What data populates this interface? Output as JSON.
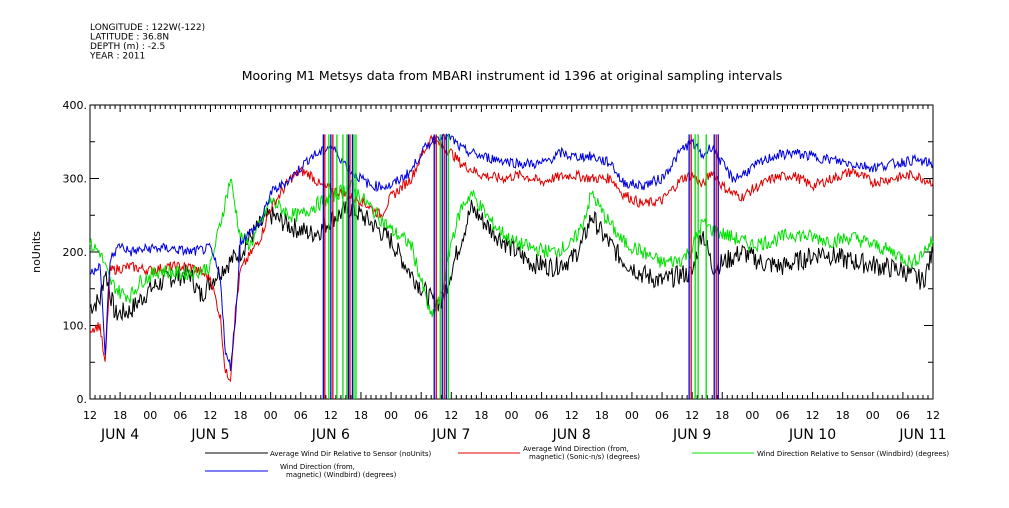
{
  "header": {
    "meta_lines": [
      "LONGITUDE : 122W(-122)",
      "LATITUDE : 36.8N",
      "DEPTH (m) : -2.5",
      "YEAR : 2011"
    ]
  },
  "chart_data": {
    "type": "line",
    "title": "Mooring M1 Metsys data from MBARI instrument id 1396 at original sampling intervals",
    "ylabel": "noUnits",
    "xlabel": "",
    "ylim": [
      0,
      400
    ],
    "y_ticks": [
      "0.",
      "100.",
      "200.",
      "300.",
      "400."
    ],
    "x_range_hours": [
      0,
      168
    ],
    "x_tick_hours": [
      0,
      6,
      12,
      18,
      24,
      30,
      36,
      42,
      48,
      54,
      60,
      66,
      72,
      78,
      84,
      90,
      96,
      102,
      108,
      114,
      120,
      126,
      132,
      138,
      144,
      150,
      156,
      162,
      168
    ],
    "x_tick_labels": [
      "12",
      "18",
      "00",
      "06",
      "12",
      "18",
      "00",
      "06",
      "12",
      "18",
      "00",
      "06",
      "12",
      "18",
      "00",
      "06",
      "12",
      "18",
      "00",
      "06",
      "12",
      "18",
      "00",
      "06",
      "12",
      "18",
      "00",
      "06",
      "12"
    ],
    "date_labels": [
      {
        "text": "JUN  4",
        "hour": 6
      },
      {
        "text": "JUN  5",
        "hour": 24
      },
      {
        "text": "JUN  6",
        "hour": 48
      },
      {
        "text": "JUN  7",
        "hour": 72
      },
      {
        "text": "JUN  8",
        "hour": 96
      },
      {
        "text": "JUN  9",
        "hour": 120
      },
      {
        "text": "JUN 10",
        "hour": 144
      },
      {
        "text": "JUN 11",
        "hour": 166
      }
    ],
    "grid": false,
    "legend_position": "bottom",
    "series": [
      {
        "name": "Average Wind Dir Relative to Sensor (noUnits)",
        "color": "#000000",
        "points": [
          [
            0,
            125
          ],
          [
            2,
            135
          ],
          [
            3,
            175
          ],
          [
            5,
            115
          ],
          [
            8,
            120
          ],
          [
            12,
            150
          ],
          [
            16,
            165
          ],
          [
            20,
            170
          ],
          [
            22,
            140
          ],
          [
            24,
            160
          ],
          [
            26,
            175
          ],
          [
            30,
            200
          ],
          [
            33,
            230
          ],
          [
            36,
            250
          ],
          [
            40,
            235
          ],
          [
            44,
            225
          ],
          [
            46,
            230
          ],
          [
            48,
            245
          ],
          [
            52,
            260
          ],
          [
            56,
            240
          ],
          [
            60,
            215
          ],
          [
            64,
            170
          ],
          [
            68,
            135
          ],
          [
            70,
            130
          ],
          [
            72,
            175
          ],
          [
            76,
            260
          ],
          [
            80,
            230
          ],
          [
            84,
            205
          ],
          [
            88,
            185
          ],
          [
            92,
            180
          ],
          [
            96,
            190
          ],
          [
            98,
            210
          ],
          [
            100,
            250
          ],
          [
            102,
            225
          ],
          [
            106,
            190
          ],
          [
            110,
            170
          ],
          [
            114,
            160
          ],
          [
            118,
            170
          ],
          [
            120,
            170
          ],
          [
            122,
            230
          ],
          [
            124,
            180
          ],
          [
            126,
            185
          ],
          [
            130,
            200
          ],
          [
            134,
            185
          ],
          [
            138,
            180
          ],
          [
            142,
            190
          ],
          [
            146,
            200
          ],
          [
            150,
            190
          ],
          [
            154,
            185
          ],
          [
            158,
            180
          ],
          [
            162,
            175
          ],
          [
            166,
            160
          ],
          [
            168,
            200
          ]
        ]
      },
      {
        "name": "Average Wind Direction (from, magnetic) (Sonic-n/s) (degrees)",
        "color": "#e00000",
        "points": [
          [
            0,
            95
          ],
          [
            2,
            100
          ],
          [
            3,
            45
          ],
          [
            4,
            175
          ],
          [
            8,
            180
          ],
          [
            12,
            175
          ],
          [
            16,
            180
          ],
          [
            20,
            180
          ],
          [
            24,
            165
          ],
          [
            26,
            110
          ],
          [
            27,
            35
          ],
          [
            28,
            30
          ],
          [
            29,
            120
          ],
          [
            30,
            175
          ],
          [
            34,
            220
          ],
          [
            36,
            260
          ],
          [
            40,
            300
          ],
          [
            42,
            310
          ],
          [
            44,
            305
          ],
          [
            46,
            290
          ],
          [
            50,
            280
          ],
          [
            54,
            270
          ],
          [
            58,
            250
          ],
          [
            60,
            275
          ],
          [
            64,
            300
          ],
          [
            66,
            330
          ],
          [
            68,
            355
          ],
          [
            70,
            345
          ],
          [
            72,
            335
          ],
          [
            74,
            320
          ],
          [
            78,
            305
          ],
          [
            82,
            300
          ],
          [
            86,
            305
          ],
          [
            90,
            295
          ],
          [
            92,
            300
          ],
          [
            96,
            305
          ],
          [
            100,
            300
          ],
          [
            104,
            300
          ],
          [
            106,
            280
          ],
          [
            110,
            265
          ],
          [
            114,
            270
          ],
          [
            116,
            285
          ],
          [
            118,
            300
          ],
          [
            120,
            305
          ],
          [
            122,
            290
          ],
          [
            124,
            310
          ],
          [
            126,
            290
          ],
          [
            128,
            280
          ],
          [
            130,
            275
          ],
          [
            132,
            285
          ],
          [
            136,
            300
          ],
          [
            140,
            305
          ],
          [
            144,
            290
          ],
          [
            148,
            300
          ],
          [
            152,
            310
          ],
          [
            156,
            295
          ],
          [
            160,
            300
          ],
          [
            164,
            305
          ],
          [
            168,
            295
          ]
        ]
      },
      {
        "name": "Wind Direction Relative to Sensor (Windbird) (degrees)",
        "color": "#00e000",
        "points": [
          [
            0,
            210
          ],
          [
            2,
            200
          ],
          [
            4,
            160
          ],
          [
            6,
            145
          ],
          [
            8,
            140
          ],
          [
            10,
            160
          ],
          [
            14,
            175
          ],
          [
            18,
            170
          ],
          [
            22,
            175
          ],
          [
            24,
            180
          ],
          [
            26,
            240
          ],
          [
            28,
            300
          ],
          [
            30,
            220
          ],
          [
            32,
            210
          ],
          [
            34,
            240
          ],
          [
            36,
            270
          ],
          [
            38,
            260
          ],
          [
            40,
            250
          ],
          [
            42,
            250
          ],
          [
            44,
            260
          ],
          [
            48,
            275
          ],
          [
            52,
            290
          ],
          [
            56,
            260
          ],
          [
            60,
            230
          ],
          [
            64,
            210
          ],
          [
            66,
            160
          ],
          [
            68,
            110
          ],
          [
            70,
            140
          ],
          [
            72,
            215
          ],
          [
            74,
            260
          ],
          [
            76,
            280
          ],
          [
            80,
            240
          ],
          [
            84,
            215
          ],
          [
            88,
            205
          ],
          [
            92,
            200
          ],
          [
            96,
            210
          ],
          [
            98,
            235
          ],
          [
            100,
            280
          ],
          [
            102,
            255
          ],
          [
            106,
            215
          ],
          [
            110,
            200
          ],
          [
            114,
            185
          ],
          [
            118,
            190
          ],
          [
            120,
            205
          ],
          [
            122,
            240
          ],
          [
            124,
            230
          ],
          [
            128,
            220
          ],
          [
            132,
            210
          ],
          [
            136,
            215
          ],
          [
            140,
            225
          ],
          [
            144,
            220
          ],
          [
            148,
            215
          ],
          [
            152,
            220
          ],
          [
            156,
            210
          ],
          [
            160,
            200
          ],
          [
            164,
            185
          ],
          [
            168,
            215
          ]
        ]
      },
      {
        "name": "Wind Direction (from, magnetic) (Windbird) (degrees)",
        "color": "#0000e0",
        "points": [
          [
            0,
            170
          ],
          [
            2,
            185
          ],
          [
            3,
            60
          ],
          [
            4,
            190
          ],
          [
            6,
            210
          ],
          [
            8,
            200
          ],
          [
            12,
            205
          ],
          [
            16,
            205
          ],
          [
            20,
            200
          ],
          [
            24,
            205
          ],
          [
            26,
            165
          ],
          [
            27,
            60
          ],
          [
            28,
            45
          ],
          [
            29,
            110
          ],
          [
            30,
            215
          ],
          [
            34,
            240
          ],
          [
            36,
            280
          ],
          [
            40,
            300
          ],
          [
            42,
            315
          ],
          [
            44,
            330
          ],
          [
            46,
            335
          ],
          [
            48,
            345
          ],
          [
            52,
            310
          ],
          [
            56,
            290
          ],
          [
            60,
            290
          ],
          [
            64,
            310
          ],
          [
            66,
            335
          ],
          [
            68,
            350
          ],
          [
            70,
            360
          ],
          [
            72,
            355
          ],
          [
            74,
            340
          ],
          [
            78,
            330
          ],
          [
            82,
            325
          ],
          [
            86,
            320
          ],
          [
            90,
            320
          ],
          [
            94,
            335
          ],
          [
            96,
            330
          ],
          [
            100,
            330
          ],
          [
            104,
            320
          ],
          [
            106,
            295
          ],
          [
            110,
            290
          ],
          [
            114,
            300
          ],
          [
            118,
            340
          ],
          [
            120,
            350
          ],
          [
            122,
            330
          ],
          [
            124,
            345
          ],
          [
            126,
            320
          ],
          [
            128,
            300
          ],
          [
            130,
            305
          ],
          [
            132,
            315
          ],
          [
            136,
            330
          ],
          [
            140,
            335
          ],
          [
            144,
            330
          ],
          [
            148,
            325
          ],
          [
            152,
            320
          ],
          [
            156,
            315
          ],
          [
            160,
            320
          ],
          [
            164,
            325
          ],
          [
            168,
            320
          ]
        ]
      }
    ],
    "spikes": [
      {
        "color": "#0000e0",
        "hours": [
          46.5,
          48.0,
          51.5,
          52.3,
          68.6,
          70.2,
          71.0,
          119.4,
          124.4,
          125.2
        ]
      },
      {
        "color": "#e00000",
        "hours": [
          46.8,
          48.4,
          51.8,
          69.0,
          70.6,
          119.8,
          124.8
        ]
      },
      {
        "color": "#00e000",
        "hours": [
          47.6,
          49.2,
          50.4,
          51.2,
          52.6,
          53.0,
          69.8,
          71.4,
          120.6,
          121.2,
          122.8
        ]
      }
    ]
  }
}
